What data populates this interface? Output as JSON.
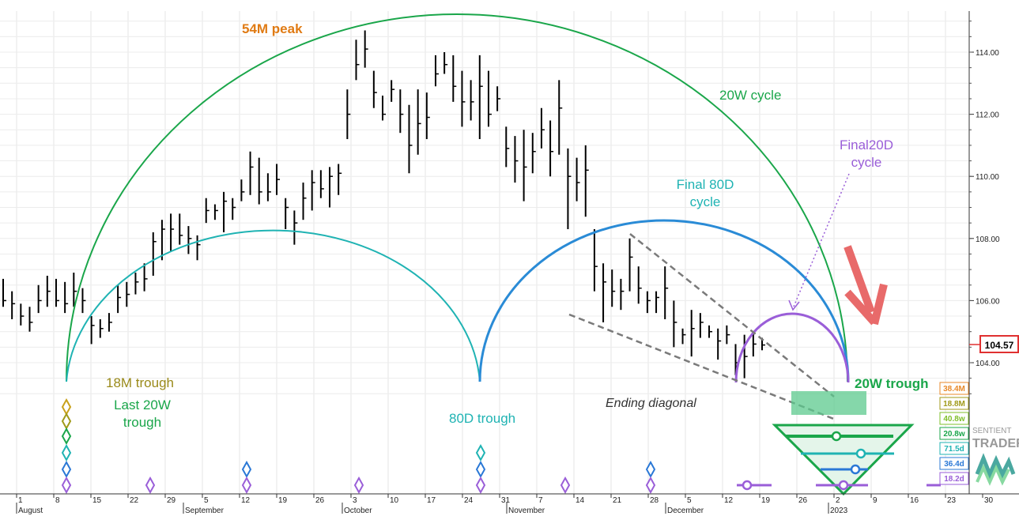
{
  "chart_data": {
    "type": "bar",
    "ylim": [
      102.0,
      115.2
    ],
    "y_ticks": [
      "104.00",
      "106.00",
      "108.00",
      "110.00",
      "112.00",
      "114.00"
    ],
    "y_tick_values": [
      104,
      106,
      108,
      110,
      112,
      114
    ],
    "x_day_labels": [
      "1",
      "8",
      "15",
      "22",
      "29",
      "5",
      "12",
      "19",
      "26",
      "3",
      "10",
      "17",
      "24",
      "31",
      "7",
      "14",
      "21",
      "28",
      "5",
      "12",
      "19",
      "26",
      "2",
      "9",
      "16",
      "23",
      "30"
    ],
    "x_month_labels": [
      "August",
      "September",
      "October",
      "November",
      "December",
      "2023"
    ],
    "last_price": "104.57",
    "grid": true,
    "annotations": {
      "peak_54m": "54M peak",
      "cycle_20w": "20W cycle",
      "final_80d": "Final 80D\ncycle",
      "final_20d": "Final20D\ncycle",
      "trough_18m": "18M trough",
      "last_20w": "Last 20W\ntrough",
      "trough_80d": "80D trough",
      "ending_diagonal": "Ending diagonal",
      "trough_20w": "20W trough"
    },
    "cycle_legend": [
      {
        "label": "38.4M",
        "color": "#e8892a"
      },
      {
        "label": "18.8M",
        "color": "#a09a1a"
      },
      {
        "label": "40.8w",
        "color": "#7fbf2a"
      },
      {
        "label": "20.8w",
        "color": "#1aa64a"
      },
      {
        "label": "71.5d",
        "color": "#1fb3b3"
      },
      {
        "label": "36.4d",
        "color": "#2a78d6"
      },
      {
        "label": "18.2d",
        "color": "#9a5ed8"
      }
    ],
    "bars": [
      [
        105.8,
        106.7,
        106.0
      ],
      [
        105.4,
        106.3,
        105.9
      ],
      [
        105.2,
        105.9,
        105.5
      ],
      [
        105.0,
        105.8,
        105.3
      ],
      [
        105.6,
        106.5,
        106.0
      ],
      [
        105.8,
        106.8,
        106.3
      ],
      [
        105.8,
        106.7,
        106.0
      ],
      [
        105.6,
        106.6,
        105.9
      ],
      [
        105.8,
        106.9,
        106.3
      ],
      [
        105.6,
        106.4,
        106.0
      ],
      [
        104.6,
        105.5,
        105.2
      ],
      [
        104.8,
        105.4,
        105.1
      ],
      [
        105.0,
        105.6,
        105.3
      ],
      [
        105.6,
        106.5,
        106.1
      ],
      [
        105.8,
        106.6,
        106.2
      ],
      [
        106.2,
        106.9,
        106.6
      ],
      [
        106.3,
        107.2,
        106.7
      ],
      [
        106.8,
        108.2,
        107.9
      ],
      [
        107.3,
        108.6,
        108.3
      ],
      [
        107.6,
        108.8,
        108.3
      ],
      [
        107.8,
        108.8,
        108.1
      ],
      [
        107.5,
        108.4,
        108.0
      ],
      [
        107.3,
        108.1,
        107.8
      ],
      [
        108.5,
        109.3,
        108.9
      ],
      [
        108.6,
        109.1,
        108.9
      ],
      [
        108.2,
        109.5,
        109.2
      ],
      [
        108.6,
        109.3,
        109.0
      ],
      [
        109.2,
        109.9,
        109.5
      ],
      [
        109.4,
        110.8,
        110.3
      ],
      [
        109.1,
        110.6,
        109.5
      ],
      [
        109.2,
        110.1,
        109.5
      ],
      [
        109.4,
        110.4,
        109.9
      ],
      [
        108.3,
        109.3,
        109.0
      ],
      [
        107.8,
        108.9,
        108.5
      ],
      [
        108.6,
        109.8,
        109.3
      ],
      [
        108.9,
        110.2,
        109.8
      ],
      [
        109.3,
        110.2,
        109.6
      ],
      [
        109.0,
        110.3,
        110.0
      ],
      [
        109.4,
        110.4,
        110.1
      ],
      [
        111.2,
        112.8,
        112.0
      ],
      [
        113.1,
        114.4,
        113.6
      ],
      [
        113.5,
        114.7,
        114.1
      ],
      [
        112.2,
        113.4,
        112.7
      ],
      [
        111.8,
        112.6,
        112.0
      ],
      [
        112.4,
        113.1,
        112.8
      ],
      [
        111.4,
        112.8,
        112.0
      ],
      [
        110.1,
        112.3,
        111.0
      ],
      [
        110.7,
        112.8,
        111.7
      ],
      [
        111.2,
        112.7,
        111.9
      ],
      [
        112.9,
        113.9,
        113.3
      ],
      [
        113.3,
        114.0,
        113.6
      ],
      [
        112.4,
        113.9,
        112.9
      ],
      [
        111.6,
        113.4,
        112.4
      ],
      [
        111.8,
        113.1,
        112.4
      ],
      [
        111.2,
        113.9,
        112.9
      ],
      [
        111.6,
        113.4,
        112.0
      ],
      [
        112.1,
        112.9,
        112.5
      ],
      [
        110.3,
        111.6,
        110.9
      ],
      [
        109.8,
        111.3,
        110.5
      ],
      [
        109.2,
        111.5,
        110.3
      ],
      [
        110.1,
        111.4,
        110.8
      ],
      [
        110.9,
        112.2,
        111.5
      ],
      [
        110.0,
        111.8,
        110.8
      ],
      [
        110.7,
        113.1,
        112.2
      ],
      [
        108.3,
        110.9,
        110.0
      ],
      [
        109.2,
        110.6,
        109.8
      ],
      [
        108.7,
        111.0,
        110.2
      ],
      [
        106.3,
        108.3,
        107.1
      ],
      [
        105.3,
        107.2,
        106.6
      ],
      [
        105.8,
        107.0,
        106.3
      ],
      [
        105.7,
        106.7,
        106.3
      ],
      [
        106.3,
        108.0,
        107.4
      ],
      [
        105.9,
        107.1,
        106.4
      ],
      [
        105.6,
        106.3,
        106.0
      ],
      [
        105.6,
        106.3,
        106.1
      ],
      [
        105.4,
        107.1,
        106.4
      ],
      [
        104.5,
        106.0,
        105.3
      ],
      [
        104.6,
        105.1,
        104.9
      ],
      [
        104.2,
        105.7,
        105.1
      ],
      [
        104.8,
        105.6,
        105.3
      ],
      [
        104.8,
        105.2,
        105.0
      ],
      [
        104.1,
        105.1,
        104.7
      ],
      [
        104.6,
        105.2,
        104.9
      ],
      [
        103.6,
        104.6,
        104.0
      ],
      [
        103.5,
        104.9,
        104.2
      ],
      [
        104.2,
        105.0,
        104.6
      ],
      [
        104.4,
        104.8,
        104.57
      ]
    ]
  }
}
